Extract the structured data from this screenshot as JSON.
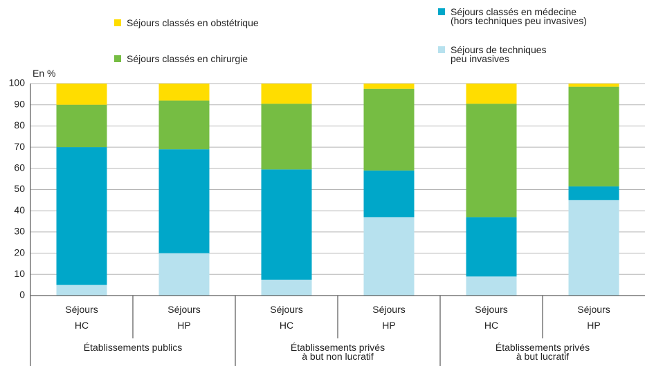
{
  "chart_data": {
    "type": "bar",
    "stacked": true,
    "ylabel": "En %",
    "categories": [
      "Séjours\nHC",
      "Séjours\nHP",
      "Séjours\nHC",
      "Séjours\nHP",
      "Séjours\nHC",
      "Séjours\nHP"
    ],
    "groups": [
      "Établissements publics",
      "Établissements privés\nà but non lucratif",
      "Établissements privés\nà but lucratif"
    ],
    "series": [
      {
        "name": "Séjours de techniques\npeu invasives",
        "color": "#b7e1ee",
        "values": [
          5,
          20,
          7.5,
          37,
          9,
          45
        ]
      },
      {
        "name": "Séjours classés en médecine\n(hors techniques peu invasives)",
        "color": "#00a7c9",
        "values": [
          65,
          49,
          52,
          22,
          28,
          6.5
        ]
      },
      {
        "name": "Séjours classés en chirurgie",
        "color": "#76bd43",
        "values": [
          20,
          23,
          31,
          38.5,
          53.5,
          47
        ]
      },
      {
        "name": "Séjours classés en obstétrique",
        "color": "#ffdd00",
        "values": [
          10,
          8,
          9.5,
          2.5,
          9.5,
          1.5
        ]
      }
    ],
    "ylim": [
      0,
      100
    ],
    "yticks": [
      0,
      10,
      20,
      30,
      40,
      50,
      60,
      70,
      80,
      90,
      100
    ],
    "grid": true
  }
}
